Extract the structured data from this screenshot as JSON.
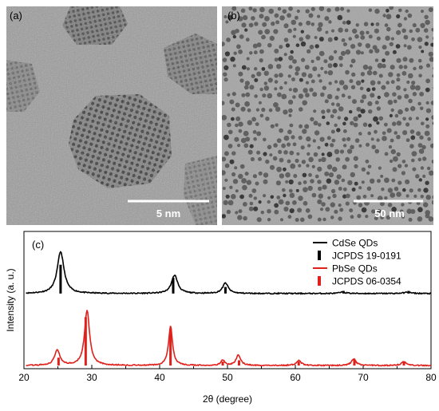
{
  "panels": {
    "a": {
      "label": "(a)",
      "scale_bar": "5 nm"
    },
    "b": {
      "label": "(b)",
      "scale_bar": "50 nm"
    },
    "c": {
      "label": "(c)"
    }
  },
  "colors": {
    "cdse": "#000000",
    "pbse": "#e0201b",
    "tem_bg": "#8a8a8a"
  },
  "chart_data": {
    "type": "line",
    "xlabel": "2θ (degree)",
    "ylabel": "Intensity (a. u.)",
    "xlim": [
      20,
      80
    ],
    "x_ticks": [
      20,
      30,
      40,
      50,
      60,
      70,
      80
    ],
    "y_ticks_labeled": false,
    "legend_position": "top-right",
    "legend": [
      {
        "label": "CdSe QDs",
        "style": "line",
        "color": "#000000"
      },
      {
        "label": "JCPDS 19-0191",
        "style": "bar",
        "color": "#000000"
      },
      {
        "label": "PbSe QDs",
        "style": "line",
        "color": "#e0201b"
      },
      {
        "label": "JCPDS 06-0354",
        "style": "bar",
        "color": "#e0201b"
      }
    ],
    "series": [
      {
        "name": "CdSe QDs",
        "color": "#000000",
        "baseline": 0.55,
        "peaks": [
          {
            "x": 25.4,
            "height": 0.32,
            "width": 1.2
          },
          {
            "x": 42.2,
            "height": 0.14,
            "width": 1.1
          },
          {
            "x": 49.7,
            "height": 0.08,
            "width": 1.0
          },
          {
            "x": 67.0,
            "height": 0.01,
            "width": 1.2
          },
          {
            "x": 76.5,
            "height": 0.01,
            "width": 1.2
          }
        ]
      },
      {
        "name": "PbSe QDs",
        "color": "#e0201b",
        "baseline": 0.0,
        "peaks": [
          {
            "x": 24.9,
            "height": 0.12,
            "width": 0.9
          },
          {
            "x": 29.3,
            "height": 0.42,
            "width": 0.9
          },
          {
            "x": 41.6,
            "height": 0.3,
            "width": 0.7
          },
          {
            "x": 49.3,
            "height": 0.04,
            "width": 0.7
          },
          {
            "x": 51.6,
            "height": 0.08,
            "width": 0.8
          },
          {
            "x": 60.5,
            "height": 0.04,
            "width": 0.8
          },
          {
            "x": 68.6,
            "height": 0.05,
            "width": 0.8
          },
          {
            "x": 76.0,
            "height": 0.03,
            "width": 0.8
          }
        ]
      }
    ],
    "reference_bars": [
      {
        "name": "JCPDS 19-0191",
        "color": "#000000",
        "base": 0.55,
        "x": [
          25.4,
          42.0,
          49.7,
          60.8,
          67.1,
          76.7
        ],
        "heights": [
          0.22,
          0.12,
          0.05,
          0.008,
          0.02,
          0.02
        ]
      },
      {
        "name": "JCPDS 06-0354",
        "color": "#e0201b",
        "base": 0.0,
        "x": [
          25.1,
          29.1,
          41.6,
          49.3,
          51.7,
          60.5,
          68.7,
          76.0
        ],
        "heights": [
          0.06,
          0.37,
          0.28,
          0.03,
          0.04,
          0.03,
          0.05,
          0.03
        ]
      }
    ]
  }
}
